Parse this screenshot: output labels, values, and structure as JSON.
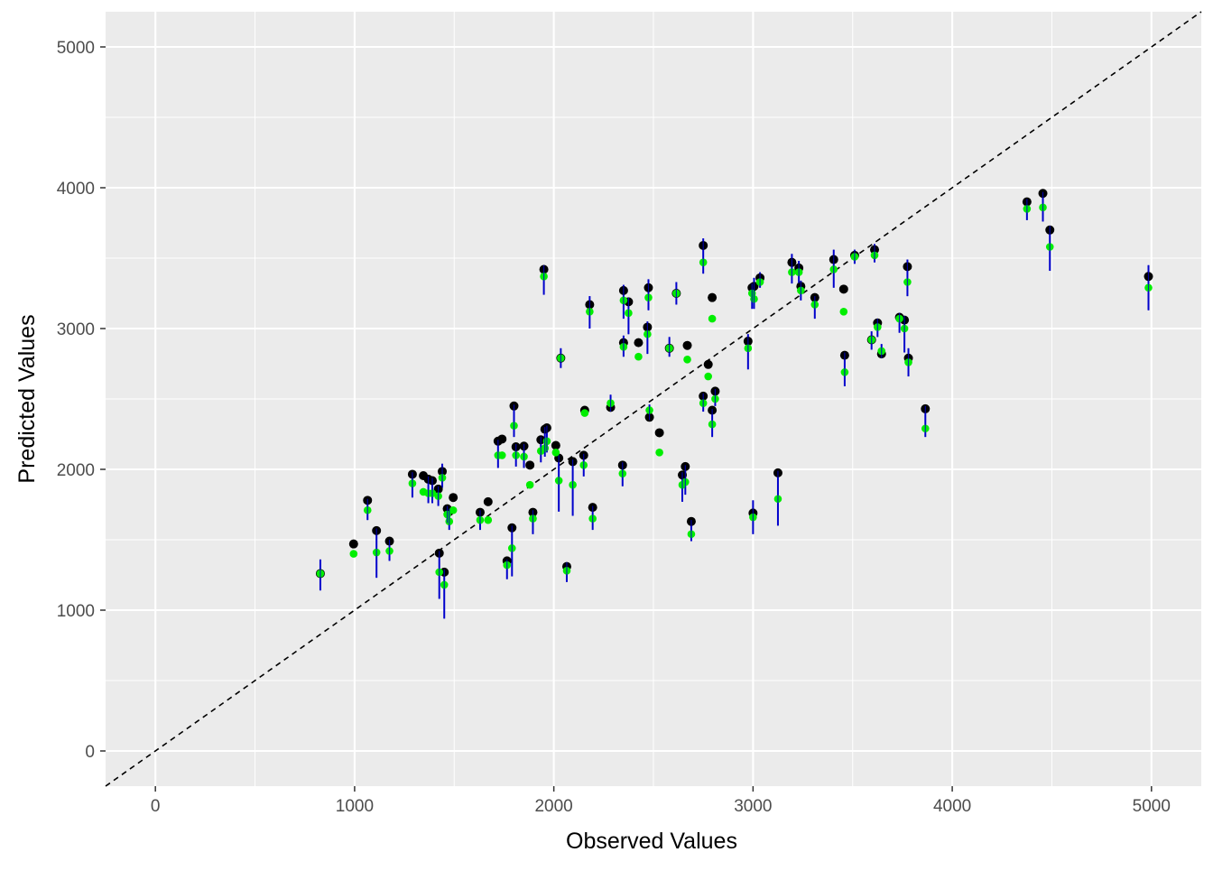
{
  "chart_data": {
    "type": "scatter",
    "title": "",
    "xlabel": "Observed Values",
    "ylabel": "Predicted Values",
    "xlim": [
      -250,
      5250
    ],
    "ylim": [
      -250,
      5250
    ],
    "xticks": [
      0,
      1000,
      2000,
      3000,
      4000,
      5000
    ],
    "yticks": [
      0,
      1000,
      2000,
      3000,
      4000,
      5000
    ],
    "xtick_labels": [
      "0",
      "1000",
      "2000",
      "3000",
      "4000",
      "5000"
    ],
    "ytick_labels": [
      "0",
      "1000",
      "2000",
      "3000",
      "4000",
      "5000"
    ],
    "grid": true,
    "reference_line": {
      "slope": 1,
      "intercept": 0,
      "style": "dashed",
      "color": "#000000"
    },
    "colors": {
      "panel": "#ebebeb",
      "grid": "#ffffff",
      "predicted_point": "#000000",
      "alt_point": "#00ee00",
      "interval": "#0000cc"
    },
    "points": [
      {
        "x": 828,
        "y": 1260,
        "g": 1260,
        "lo": 1140,
        "hi": 1360
      },
      {
        "x": 995,
        "y": 1470,
        "g": 1400,
        "lo": null,
        "hi": null
      },
      {
        "x": 1065,
        "y": 1780,
        "g": 1710,
        "lo": 1640,
        "hi": 1790
      },
      {
        "x": 1110,
        "y": 1565,
        "g": 1410,
        "lo": 1230,
        "hi": 1580
      },
      {
        "x": 1175,
        "y": 1490,
        "g": 1420,
        "lo": 1350,
        "hi": 1500
      },
      {
        "x": 1290,
        "y": 1965,
        "g": 1900,
        "lo": 1800,
        "hi": 1980
      },
      {
        "x": 1345,
        "y": 1955,
        "g": 1840,
        "lo": null,
        "hi": null
      },
      {
        "x": 1370,
        "y": 1930,
        "g": 1830,
        "lo": 1760,
        "hi": 1950
      },
      {
        "x": 1390,
        "y": 1920,
        "g": 1830,
        "lo": 1760,
        "hi": 1940
      },
      {
        "x": 1420,
        "y": 1860,
        "g": 1810,
        "lo": 1740,
        "hi": 1880
      },
      {
        "x": 1440,
        "y": 1985,
        "g": 1940,
        "lo": 1870,
        "hi": 2040
      },
      {
        "x": 1425,
        "y": 1405,
        "g": 1270,
        "lo": 1080,
        "hi": 1420
      },
      {
        "x": 1450,
        "y": 1270,
        "g": 1180,
        "lo": 940,
        "hi": 1290
      },
      {
        "x": 1465,
        "y": 1720,
        "g": 1680,
        "lo": 1620,
        "hi": 1740
      },
      {
        "x": 1475,
        "y": 1700,
        "g": 1630,
        "lo": 1570,
        "hi": 1720
      },
      {
        "x": 1495,
        "y": 1800,
        "g": 1710,
        "lo": null,
        "hi": null
      },
      {
        "x": 1630,
        "y": 1695,
        "g": 1640,
        "lo": 1570,
        "hi": 1710
      },
      {
        "x": 1670,
        "y": 1770,
        "g": 1640,
        "lo": null,
        "hi": null
      },
      {
        "x": 1720,
        "y": 2200,
        "g": 2100,
        "lo": 2010,
        "hi": 2210
      },
      {
        "x": 1740,
        "y": 2215,
        "g": 2100,
        "lo": null,
        "hi": null
      },
      {
        "x": 1765,
        "y": 1350,
        "g": 1320,
        "lo": 1220,
        "hi": 1360
      },
      {
        "x": 1790,
        "y": 1585,
        "g": 1440,
        "lo": 1240,
        "hi": 1600
      },
      {
        "x": 1800,
        "y": 2450,
        "g": 2310,
        "lo": 2230,
        "hi": 2460
      },
      {
        "x": 1810,
        "y": 2160,
        "g": 2100,
        "lo": 2020,
        "hi": 2180
      },
      {
        "x": 1850,
        "y": 2165,
        "g": 2090,
        "lo": 2010,
        "hi": 2180
      },
      {
        "x": 1880,
        "y": 2030,
        "g": 1890,
        "lo": null,
        "hi": null
      },
      {
        "x": 1895,
        "y": 1695,
        "g": 1650,
        "lo": 1540,
        "hi": 1710
      },
      {
        "x": 1935,
        "y": 2210,
        "g": 2130,
        "lo": 2050,
        "hi": 2230
      },
      {
        "x": 1955,
        "y": 2285,
        "g": 2150,
        "lo": 2090,
        "hi": 2300
      },
      {
        "x": 1965,
        "y": 2295,
        "g": 2200,
        "lo": 2120,
        "hi": 2310
      },
      {
        "x": 1950,
        "y": 3420,
        "g": 3370,
        "lo": 3240,
        "hi": 3450
      },
      {
        "x": 2010,
        "y": 2170,
        "g": 2120,
        "lo": null,
        "hi": null
      },
      {
        "x": 2025,
        "y": 2080,
        "g": 1920,
        "lo": 1700,
        "hi": 2100
      },
      {
        "x": 2035,
        "y": 2790,
        "g": 2790,
        "lo": 2720,
        "hi": 2860
      },
      {
        "x": 2065,
        "y": 1310,
        "g": 1280,
        "lo": 1200,
        "hi": 1340
      },
      {
        "x": 2095,
        "y": 2055,
        "g": 1890,
        "lo": 1670,
        "hi": 2070
      },
      {
        "x": 2150,
        "y": 2100,
        "g": 2030,
        "lo": 1950,
        "hi": 2110
      },
      {
        "x": 2155,
        "y": 2420,
        "g": 2400,
        "lo": null,
        "hi": null
      },
      {
        "x": 2180,
        "y": 3170,
        "g": 3120,
        "lo": 3000,
        "hi": 3230
      },
      {
        "x": 2195,
        "y": 1730,
        "g": 1650,
        "lo": 1570,
        "hi": 1740
      },
      {
        "x": 2285,
        "y": 2440,
        "g": 2470,
        "lo": 2410,
        "hi": 2530
      },
      {
        "x": 2345,
        "y": 2030,
        "g": 1970,
        "lo": 1880,
        "hi": 2050
      },
      {
        "x": 2350,
        "y": 3270,
        "g": 3200,
        "lo": 3070,
        "hi": 3310
      },
      {
        "x": 2350,
        "y": 2900,
        "g": 2870,
        "lo": 2800,
        "hi": 2950
      },
      {
        "x": 2375,
        "y": 3190,
        "g": 3110,
        "lo": 2960,
        "hi": 3220
      },
      {
        "x": 2425,
        "y": 2900,
        "g": 2800,
        "lo": null,
        "hi": null
      },
      {
        "x": 2470,
        "y": 3010,
        "g": 2960,
        "lo": 2820,
        "hi": 3050
      },
      {
        "x": 2475,
        "y": 3290,
        "g": 3220,
        "lo": 3130,
        "hi": 3350
      },
      {
        "x": 2480,
        "y": 2370,
        "g": 2420,
        "lo": 2350,
        "hi": 2460
      },
      {
        "x": 2530,
        "y": 2260,
        "g": 2120,
        "lo": null,
        "hi": null
      },
      {
        "x": 2580,
        "y": 2860,
        "g": 2860,
        "lo": 2800,
        "hi": 2940
      },
      {
        "x": 2615,
        "y": 3250,
        "g": 3250,
        "lo": 3170,
        "hi": 3330
      },
      {
        "x": 2645,
        "y": 1960,
        "g": 1890,
        "lo": 1770,
        "hi": 1980
      },
      {
        "x": 2660,
        "y": 2020,
        "g": 1910,
        "lo": 1820,
        "hi": 2030
      },
      {
        "x": 2670,
        "y": 2880,
        "g": 2780,
        "lo": null,
        "hi": null
      },
      {
        "x": 2690,
        "y": 1630,
        "g": 1540,
        "lo": 1490,
        "hi": 1640
      },
      {
        "x": 2750,
        "y": 3590,
        "g": 3470,
        "lo": 3390,
        "hi": 3640
      },
      {
        "x": 2750,
        "y": 2520,
        "g": 2470,
        "lo": 2410,
        "hi": 2540
      },
      {
        "x": 2775,
        "y": 2745,
        "g": 2660,
        "lo": null,
        "hi": null
      },
      {
        "x": 2795,
        "y": 3220,
        "g": 3070,
        "lo": null,
        "hi": null
      },
      {
        "x": 2795,
        "y": 2420,
        "g": 2320,
        "lo": 2230,
        "hi": 2430
      },
      {
        "x": 2810,
        "y": 2555,
        "g": 2500,
        "lo": 2450,
        "hi": 2570
      },
      {
        "x": 2975,
        "y": 2910,
        "g": 2860,
        "lo": 2710,
        "hi": 2960
      },
      {
        "x": 2995,
        "y": 3290,
        "g": 3250,
        "lo": 3140,
        "hi": 3320
      },
      {
        "x": 3000,
        "y": 1690,
        "g": 1660,
        "lo": 1540,
        "hi": 1780
      },
      {
        "x": 3005,
        "y": 3300,
        "g": 3210,
        "lo": 3140,
        "hi": 3360
      },
      {
        "x": 3035,
        "y": 3360,
        "g": 3330,
        "lo": 3290,
        "hi": 3400
      },
      {
        "x": 3125,
        "y": 1975,
        "g": 1790,
        "lo": 1600,
        "hi": 1990
      },
      {
        "x": 3195,
        "y": 3470,
        "g": 3400,
        "lo": 3320,
        "hi": 3530
      },
      {
        "x": 3230,
        "y": 3430,
        "g": 3400,
        "lo": 3320,
        "hi": 3480
      },
      {
        "x": 3240,
        "y": 3300,
        "g": 3270,
        "lo": 3200,
        "hi": 3340
      },
      {
        "x": 3310,
        "y": 3220,
        "g": 3170,
        "lo": 3070,
        "hi": 3230
      },
      {
        "x": 3405,
        "y": 3490,
        "g": 3420,
        "lo": 3290,
        "hi": 3560
      },
      {
        "x": 3455,
        "y": 3280,
        "g": 3120,
        "lo": null,
        "hi": null
      },
      {
        "x": 3460,
        "y": 2810,
        "g": 2690,
        "lo": 2590,
        "hi": 2830
      },
      {
        "x": 3510,
        "y": 3520,
        "g": 3510,
        "lo": 3460,
        "hi": 3560
      },
      {
        "x": 3595,
        "y": 2920,
        "g": 2920,
        "lo": 2850,
        "hi": 2980
      },
      {
        "x": 3610,
        "y": 3560,
        "g": 3520,
        "lo": 3470,
        "hi": 3600
      },
      {
        "x": 3625,
        "y": 3040,
        "g": 3010,
        "lo": 2940,
        "hi": 3070
      },
      {
        "x": 3645,
        "y": 2820,
        "g": 2840,
        "lo": 2790,
        "hi": 2890
      },
      {
        "x": 3735,
        "y": 3080,
        "g": 3070,
        "lo": 2970,
        "hi": 3110
      },
      {
        "x": 3760,
        "y": 3060,
        "g": 3000,
        "lo": 2830,
        "hi": 3090
      },
      {
        "x": 3775,
        "y": 3440,
        "g": 3330,
        "lo": 3230,
        "hi": 3490
      },
      {
        "x": 3780,
        "y": 2790,
        "g": 2760,
        "lo": 2660,
        "hi": 2860
      },
      {
        "x": 3865,
        "y": 2430,
        "g": 2290,
        "lo": 2230,
        "hi": 2450
      },
      {
        "x": 4375,
        "y": 3900,
        "g": 3850,
        "lo": 3770,
        "hi": 3920
      },
      {
        "x": 4455,
        "y": 3960,
        "g": 3860,
        "lo": 3760,
        "hi": 3970
      },
      {
        "x": 4490,
        "y": 3700,
        "g": 3580,
        "lo": 3410,
        "hi": 3730
      },
      {
        "x": 4985,
        "y": 3370,
        "g": 3290,
        "lo": 3130,
        "hi": 3450
      }
    ]
  }
}
